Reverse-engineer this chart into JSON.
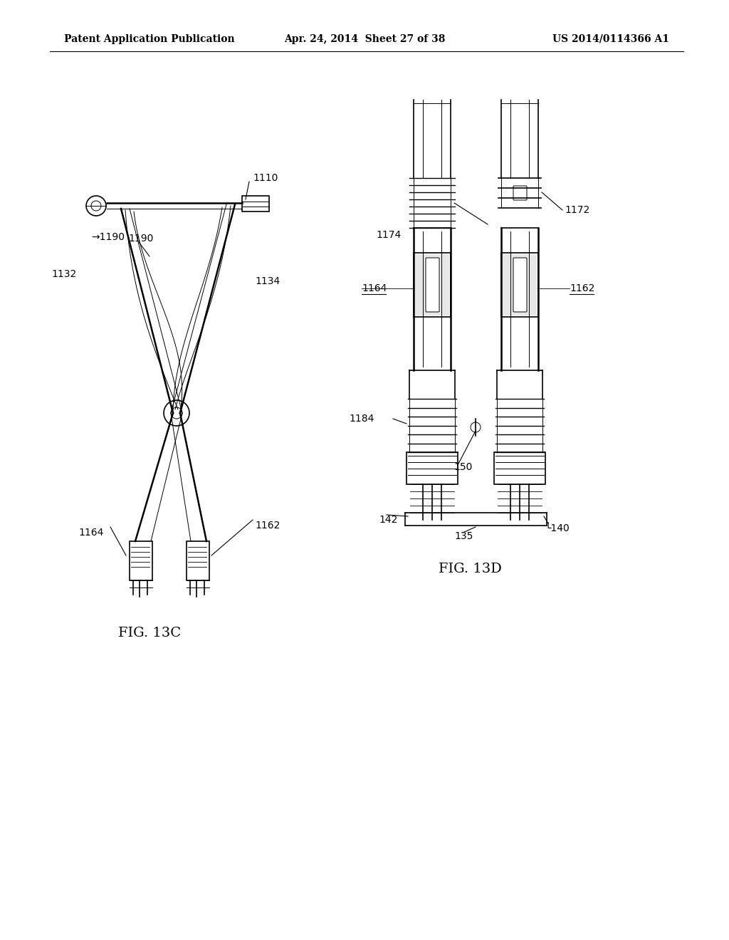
{
  "background_color": "#ffffff",
  "header_left": "Patent Application Publication",
  "header_center": "Apr. 24, 2014  Sheet 27 of 38",
  "header_right": "US 2014/0114366 A1",
  "fig_13c_label": "FIG. 13C",
  "fig_13d_label": "FIG. 13D",
  "line_color": "#000000",
  "text_color": "#000000",
  "header_font_size": 10,
  "ref_font_size": 10,
  "fig_label_font_size": 14
}
